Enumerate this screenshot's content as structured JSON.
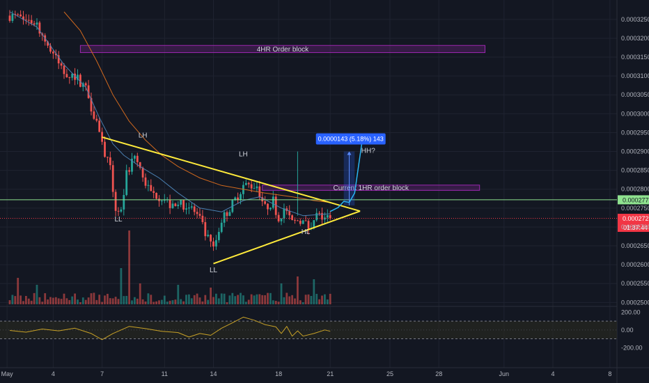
{
  "chart_data": {
    "type": "candlestick",
    "colors": {
      "background": "#131722",
      "grid": "#1f2330",
      "up": "#26a69a",
      "down": "#ef5350",
      "ema_fast": "#4a7fb0",
      "ema_slow": "#d2691e",
      "triangle": "#ffeb3b",
      "green_level": "#8fe28f",
      "red_level": "#f23645",
      "order_block": "#9c27b0",
      "projection": "#2962ff",
      "oscillator": "#c9a227"
    },
    "y_axis": {
      "ylim": [
        0.00024951,
        0.00032737
      ],
      "ticks": [
        "0.0003250",
        "0.0003200",
        "0.0003150",
        "0.0003100",
        "0.0003050",
        "0.0003000",
        "0.0002950",
        "0.0002900",
        "0.0002850",
        "0.0002800",
        "0.0002750",
        "0.0002700",
        "0.0002650",
        "0.0002600",
        "0.0002550",
        "0.0002500"
      ]
    },
    "x_axis": {
      "ticks": [
        {
          "label": "May",
          "bar": -1
        },
        {
          "label": "4",
          "bar": 16
        },
        {
          "label": "7",
          "bar": 34
        },
        {
          "label": "11",
          "bar": 57
        },
        {
          "label": "14",
          "bar": 75
        },
        {
          "label": "18",
          "bar": 99
        },
        {
          "label": "21",
          "bar": 118
        },
        {
          "label": "25",
          "bar": 140
        },
        {
          "label": "28",
          "bar": 158
        },
        {
          "label": "Jun",
          "bar": 182
        },
        {
          "label": "4",
          "bar": 200
        },
        {
          "label": "8",
          "bar": 221
        }
      ]
    },
    "price_path": [
      [
        0,
        0.000326
      ],
      [
        10,
        0.000324
      ],
      [
        14,
        0.000318
      ],
      [
        20,
        0.000311
      ],
      [
        24,
        0.00031
      ],
      [
        28,
        0.000307
      ],
      [
        30,
        0.000302
      ],
      [
        33,
        0.000296
      ],
      [
        34,
        0.000292
      ],
      [
        37,
        0.000285
      ],
      [
        39,
        0.000275
      ],
      [
        41,
        0.000274
      ],
      [
        43,
        0.000284
      ],
      [
        46,
        0.000289
      ],
      [
        49,
        0.000283
      ],
      [
        52,
        0.000279
      ],
      [
        56,
        0.000278
      ],
      [
        60,
        0.000275
      ],
      [
        64,
        0.000276
      ],
      [
        67,
        0.000275
      ],
      [
        70,
        0.000272
      ],
      [
        72,
        0.000268
      ],
      [
        75,
        0.000264
      ],
      [
        78,
        0.000272
      ],
      [
        82,
        0.000276
      ],
      [
        86,
        0.000281
      ],
      [
        91,
        0.000281
      ],
      [
        94,
        0.000275
      ],
      [
        97,
        0.000277
      ],
      [
        99,
        0.000272
      ],
      [
        101,
        0.000275
      ],
      [
        104,
        0.000271
      ],
      [
        107,
        0.000272
      ],
      [
        110,
        0.00027
      ],
      [
        113,
        0.000273
      ],
      [
        116,
        0.0002725
      ],
      [
        118,
        0.0002723
      ]
    ],
    "ema_fast": [
      [
        0,
        0.000327
      ],
      [
        10,
        0.000323
      ],
      [
        20,
        0.000313
      ],
      [
        28,
        0.000307
      ],
      [
        33,
        0.000299
      ],
      [
        38,
        0.000292
      ],
      [
        42,
        0.000289
      ],
      [
        48,
        0.000286
      ],
      [
        55,
        0.000283
      ],
      [
        62,
        0.000279
      ],
      [
        70,
        0.000275
      ],
      [
        78,
        0.000274
      ],
      [
        86,
        0.000277
      ],
      [
        92,
        0.000278
      ],
      [
        100,
        0.000275
      ],
      [
        108,
        0.000273
      ],
      [
        118,
        0.0002735
      ]
    ],
    "ema_slow": [
      [
        20,
        0.000327
      ],
      [
        26,
        0.000322
      ],
      [
        32,
        0.000314
      ],
      [
        38,
        0.000305
      ],
      [
        44,
        0.000298
      ],
      [
        50,
        0.000293
      ],
      [
        56,
        0.000289
      ],
      [
        62,
        0.000286
      ],
      [
        70,
        0.000283
      ],
      [
        78,
        0.000281
      ],
      [
        86,
        0.00028
      ],
      [
        94,
        0.000279
      ],
      [
        104,
        0.000278
      ],
      [
        112,
        0.000277
      ],
      [
        118,
        0.0002765
      ]
    ],
    "volume_spikes": [
      [
        3,
        38
      ],
      [
        10,
        28
      ],
      [
        41,
        52
      ],
      [
        44,
        106
      ],
      [
        48,
        30
      ],
      [
        62,
        28
      ],
      [
        74,
        24
      ],
      [
        100,
        30
      ],
      [
        106,
        40
      ],
      [
        112,
        36
      ]
    ],
    "oscillator": {
      "ticks": [
        "200.00",
        "0.00",
        "-200.00"
      ],
      "upper_band": 100,
      "lower_band": -100,
      "ylim": [
        -300,
        250
      ],
      "path": [
        [
          0,
          -5
        ],
        [
          6,
          -25
        ],
        [
          12,
          10
        ],
        [
          18,
          -10
        ],
        [
          24,
          20
        ],
        [
          30,
          -40
        ],
        [
          34,
          -110
        ],
        [
          38,
          -40
        ],
        [
          44,
          40
        ],
        [
          50,
          15
        ],
        [
          56,
          -15
        ],
        [
          62,
          -30
        ],
        [
          66,
          -80
        ],
        [
          70,
          -40
        ],
        [
          74,
          -60
        ],
        [
          78,
          20
        ],
        [
          82,
          80
        ],
        [
          86,
          145
        ],
        [
          90,
          110
        ],
        [
          94,
          60
        ],
        [
          98,
          35
        ],
        [
          100,
          -40
        ],
        [
          102,
          40
        ],
        [
          104,
          -70
        ],
        [
          106,
          -10
        ],
        [
          108,
          -70
        ],
        [
          112,
          -40
        ],
        [
          116,
          0
        ],
        [
          118,
          -15
        ]
      ]
    },
    "order_blocks": [
      {
        "label": "4HR Order block",
        "x0": 26,
        "x1": 175,
        "y0": 0.0003181,
        "y1": 0.0003162
      },
      {
        "label": "Current 1HR order block",
        "x0": 93,
        "x1": 173,
        "y0": 0.0002811,
        "y1": 0.0002797
      }
    ],
    "triangle": {
      "upper": [
        [
          34,
          0.0002938
        ],
        [
          129,
          0.0002742
        ]
      ],
      "lower": [
        [
          75,
          0.0002603
        ],
        [
          129,
          0.0002742
        ]
      ]
    },
    "levels": {
      "green": {
        "value": 0.0002772,
        "label": "0.0002772"
      },
      "red": {
        "value": 0.0002723,
        "label": "0.0002723",
        "countdown": "01:37:44"
      }
    },
    "annotations": [
      {
        "text": "LH",
        "bar": 49,
        "price": 0.0002937
      },
      {
        "text": "LH",
        "bar": 86,
        "price": 0.0002887
      },
      {
        "text": "LL",
        "bar": 40,
        "price": 0.0002715
      },
      {
        "text": "LL",
        "bar": 75,
        "price": 0.000258
      },
      {
        "text": "HL",
        "bar": 109,
        "price": 0.0002681
      },
      {
        "text": "HH?",
        "bar": 132,
        "price": 0.0002896
      }
    ],
    "projection": {
      "badge": "0.0000143 (5.18%) 143",
      "x0": 123,
      "x1": 127,
      "y0": 0.0002757,
      "y1": 0.00029,
      "path": [
        [
          118,
          0.0002741
        ],
        [
          121,
          0.0002752
        ],
        [
          123,
          0.0002768
        ],
        [
          125,
          0.0002765
        ],
        [
          127,
          0.000279
        ],
        [
          130,
          0.000294
        ]
      ]
    }
  }
}
